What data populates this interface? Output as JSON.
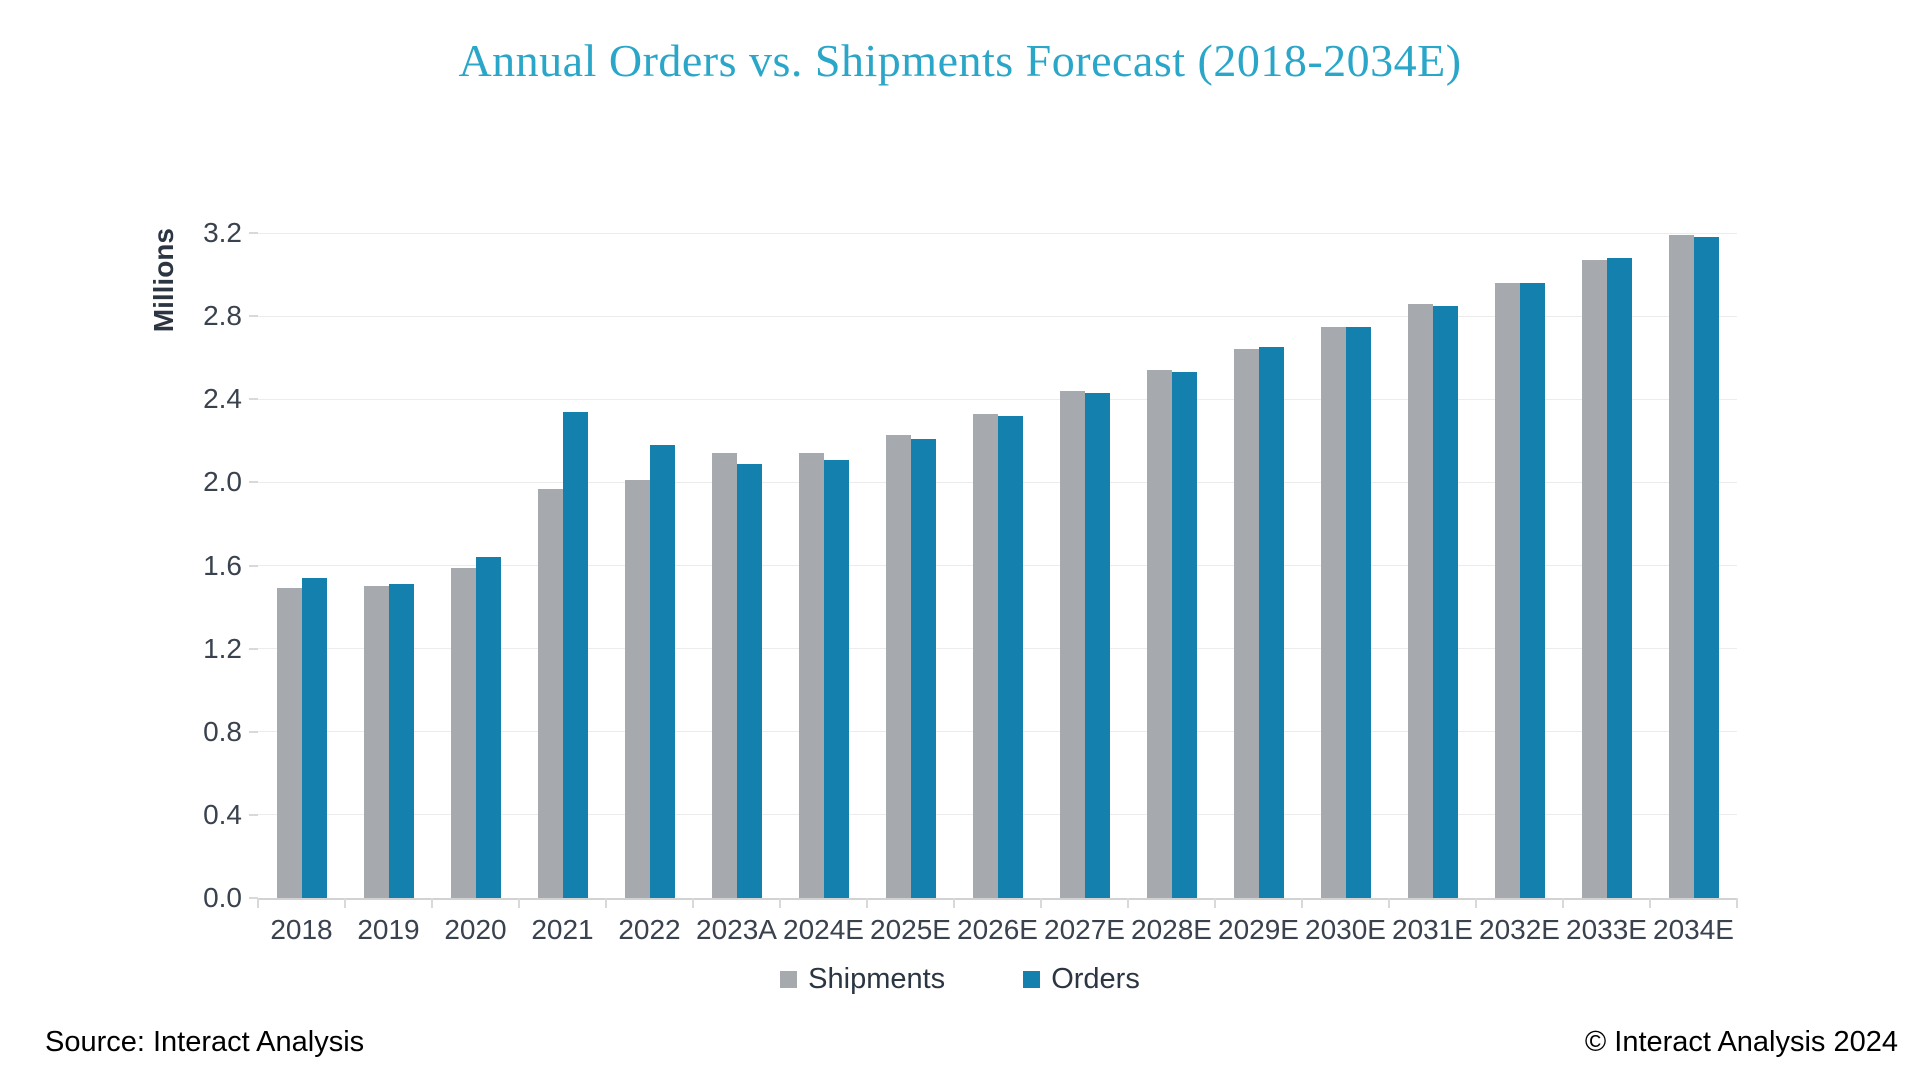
{
  "title": "Annual Orders vs. Shipments Forecast (2018-2034E)",
  "colors": {
    "title": "#2aa6c8",
    "shipments": "#a6aaae",
    "orders": "#1380ad",
    "axis_text": "#39424e",
    "gridline": "#ececec",
    "axis_line": "#d2d2d2"
  },
  "chart_data": {
    "type": "bar",
    "title": "Annual Orders vs. Shipments Forecast (2018-2034E)",
    "xlabel": "",
    "ylabel": "Millions",
    "ylim": [
      0.0,
      3.2
    ],
    "ytick_step": 0.4,
    "grid": true,
    "legend_position": "bottom",
    "categories": [
      "2018",
      "2019",
      "2020",
      "2021",
      "2022",
      "2023A",
      "2024E",
      "2025E",
      "2026E",
      "2027E",
      "2028E",
      "2029E",
      "2030E",
      "2031E",
      "2032E",
      "2033E",
      "2034E"
    ],
    "series": [
      {
        "name": "Shipments",
        "color": "#a6aaae",
        "values": [
          1.49,
          1.5,
          1.59,
          1.97,
          2.01,
          2.14,
          2.14,
          2.23,
          2.33,
          2.44,
          2.54,
          2.64,
          2.75,
          2.86,
          2.96,
          3.07,
          3.19
        ]
      },
      {
        "name": "Orders",
        "color": "#1380ad",
        "values": [
          1.54,
          1.51,
          1.64,
          2.34,
          2.18,
          2.09,
          2.11,
          2.21,
          2.32,
          2.43,
          2.53,
          2.65,
          2.75,
          2.85,
          2.96,
          3.08,
          3.18
        ]
      }
    ]
  },
  "footer": {
    "source": "Source: Interact Analysis",
    "copyright": "© Interact Analysis 2024"
  }
}
